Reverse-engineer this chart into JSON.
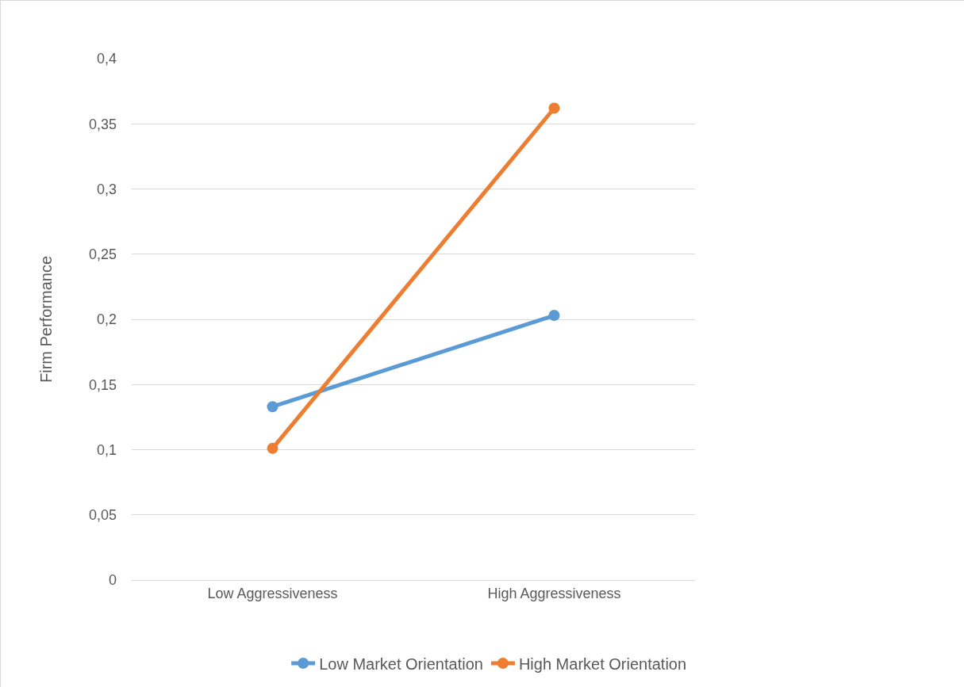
{
  "chart_data": {
    "type": "line",
    "ylabel": "Firm Performance",
    "categories": [
      "Low Aggressiveness",
      "High Aggressiveness"
    ],
    "series": [
      {
        "name": "Low Market Orientation",
        "color": "#5b9bd5",
        "values": [
          0.133,
          0.203
        ]
      },
      {
        "name": "High Market Orientation",
        "color": "#ed7d31",
        "values": [
          0.101,
          0.362
        ]
      }
    ],
    "ylim": [
      0,
      0.4
    ],
    "yticks": [
      0,
      {
        "value": 0.05,
        "label": "0,05"
      },
      {
        "value": 0.1,
        "label": "0,1"
      },
      {
        "value": 0.15,
        "label": "0,15"
      },
      {
        "value": 0.2,
        "label": "0,2"
      },
      {
        "value": 0.25,
        "label": "0,25"
      },
      {
        "value": 0.3,
        "label": "0,3"
      },
      {
        "value": 0.35,
        "label": "0,35"
      },
      {
        "value": 0.4,
        "label": "0,4"
      }
    ],
    "grid": "y",
    "legend": "bottom",
    "marker": "circle",
    "line_style": "solid"
  }
}
